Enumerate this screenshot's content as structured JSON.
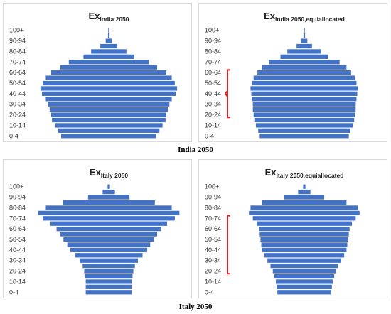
{
  "captions": {
    "india": "India 2050",
    "italy": "Italy 2050"
  },
  "chart_data": [
    {
      "type": "bar",
      "orientation": "horizontal-population-pyramid",
      "title_main": "Ex",
      "title_sub": "India 2050",
      "categories": [
        "0-4",
        "5-9",
        "10-14",
        "15-19",
        "20-24",
        "25-29",
        "30-34",
        "35-39",
        "40-44",
        "45-49",
        "50-54",
        "55-59",
        "60-64",
        "65-69",
        "70-74",
        "75-79",
        "80-84",
        "85-89",
        "90-94",
        "95-99",
        "100+"
      ],
      "tick_labels": [
        "0-4",
        "10-14",
        "20-24",
        "30-34",
        "40-44",
        "50-54",
        "60-64",
        "70-74",
        "80-84",
        "90-94",
        "100+"
      ],
      "values": [
        0.62,
        0.66,
        0.7,
        0.74,
        0.75,
        0.77,
        0.79,
        0.82,
        0.87,
        0.89,
        0.86,
        0.82,
        0.75,
        0.63,
        0.52,
        0.33,
        0.23,
        0.11,
        0.04,
        0.01,
        0.003
      ],
      "color": "#4472c4",
      "highlight_bracket": null
    },
    {
      "type": "bar",
      "orientation": "horizontal-population-pyramid",
      "title_main": "Ex",
      "title_sub": "India 2050,equiallocated",
      "categories": [
        "0-4",
        "5-9",
        "10-14",
        "15-19",
        "20-24",
        "25-29",
        "30-34",
        "35-39",
        "40-44",
        "45-49",
        "50-54",
        "55-59",
        "60-64",
        "65-69",
        "70-74",
        "75-79",
        "80-84",
        "85-89",
        "90-94",
        "95-99",
        "100+"
      ],
      "tick_labels": [
        "0-4",
        "10-14",
        "20-24",
        "30-34",
        "40-44",
        "50-54",
        "60-64",
        "70-74",
        "80-84",
        "90-94",
        "100+"
      ],
      "values": [
        0.58,
        0.6,
        0.63,
        0.65,
        0.66,
        0.67,
        0.67,
        0.68,
        0.69,
        0.7,
        0.68,
        0.66,
        0.61,
        0.55,
        0.46,
        0.31,
        0.22,
        0.1,
        0.04,
        0.01,
        0.003
      ],
      "color": "#4472c4",
      "highlight_bracket": {
        "from": "20-24",
        "to": "60-64",
        "color": "#e02020",
        "notch": "40-44"
      }
    },
    {
      "type": "bar",
      "orientation": "horizontal-population-pyramid",
      "title_main": "Ex",
      "title_sub": "Italy 2050",
      "categories": [
        "0-4",
        "5-9",
        "10-14",
        "15-19",
        "20-24",
        "25-29",
        "30-34",
        "35-39",
        "40-44",
        "45-49",
        "50-54",
        "55-59",
        "60-64",
        "65-69",
        "70-74",
        "75-79",
        "80-84",
        "85-89",
        "90-94",
        "95-99",
        "100+"
      ],
      "tick_labels": [
        "0-4",
        "10-14",
        "20-24",
        "30-34",
        "40-44",
        "50-54",
        "60-64",
        "70-74",
        "80-84",
        "90-94",
        "100+"
      ],
      "values": [
        0.3,
        0.3,
        0.3,
        0.31,
        0.32,
        0.34,
        0.38,
        0.44,
        0.5,
        0.54,
        0.59,
        0.63,
        0.68,
        0.76,
        0.86,
        0.92,
        0.82,
        0.6,
        0.27,
        0.08,
        0.015
      ],
      "color": "#4472c4",
      "highlight_bracket": null
    },
    {
      "type": "bar",
      "orientation": "horizontal-population-pyramid",
      "title_main": "Ex",
      "title_sub": "Italy 2050,equiallocated",
      "categories": [
        "0-4",
        "5-9",
        "10-14",
        "15-19",
        "20-24",
        "25-29",
        "30-34",
        "35-39",
        "40-44",
        "45-49",
        "50-54",
        "55-59",
        "60-64",
        "65-69",
        "70-74",
        "75-79",
        "80-84",
        "85-89",
        "90-94",
        "95-99",
        "100+"
      ],
      "tick_labels": [
        "0-4",
        "10-14",
        "20-24",
        "30-34",
        "40-44",
        "50-54",
        "60-64",
        "70-74",
        "80-84",
        "90-94",
        "100+"
      ],
      "values": [
        0.35,
        0.36,
        0.37,
        0.39,
        0.41,
        0.44,
        0.48,
        0.52,
        0.55,
        0.56,
        0.57,
        0.58,
        0.59,
        0.62,
        0.67,
        0.72,
        0.7,
        0.55,
        0.26,
        0.08,
        0.015
      ],
      "color": "#4472c4",
      "highlight_bracket": {
        "from": "20-24",
        "to": "70-74",
        "color": "#e02020",
        "notch": null
      }
    }
  ]
}
